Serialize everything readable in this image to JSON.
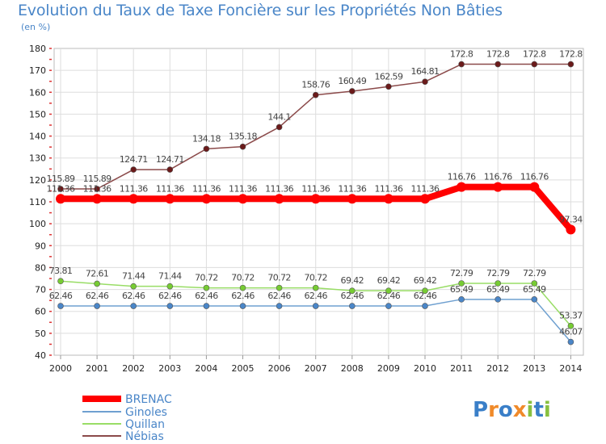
{
  "chart_data": {
    "type": "line",
    "title": "Evolution du Taux de Taxe Foncière sur les Propriétés Non Bâties",
    "ylabel": "(en %)",
    "xlabel": "",
    "ylim": [
      40,
      180
    ],
    "yticks": [
      40,
      50,
      60,
      70,
      80,
      90,
      100,
      110,
      120,
      130,
      140,
      150,
      160,
      170,
      180
    ],
    "categories": [
      "2000",
      "2001",
      "2002",
      "2003",
      "2004",
      "2005",
      "2006",
      "2007",
      "2008",
      "2009",
      "2010",
      "2011",
      "2012",
      "2013",
      "2014"
    ],
    "series": [
      {
        "name": "BRENAC",
        "color": "#ff0000",
        "marker": "#ff0000",
        "values": [
          111.36,
          111.36,
          111.36,
          111.36,
          111.36,
          111.36,
          111.36,
          111.36,
          111.36,
          111.36,
          111.36,
          116.76,
          116.76,
          116.76,
          97.34
        ],
        "labels": [
          "111.36",
          "111.36",
          "111.36",
          "111.36",
          "111.36",
          "111.36",
          "111.36",
          "111.36",
          "111.36",
          "111.36",
          "111.36",
          "116.76",
          "116.76",
          "116.76",
          "97.34"
        ]
      },
      {
        "name": "Ginoles",
        "color": "#6fa0d0",
        "marker": "#4a86c8",
        "values": [
          62.46,
          62.46,
          62.46,
          62.46,
          62.46,
          62.46,
          62.46,
          62.46,
          62.46,
          62.46,
          62.46,
          65.49,
          65.49,
          65.49,
          46.07
        ],
        "labels": [
          "62.46",
          "62.46",
          "62.46",
          "62.46",
          "62.46",
          "62.46",
          "62.46",
          "62.46",
          "62.46",
          "62.46",
          "62.46",
          "65.49",
          "65.49",
          "65.49",
          "46.07"
        ]
      },
      {
        "name": "Quillan",
        "color": "#99dd66",
        "marker": "#77cc33",
        "values": [
          73.81,
          72.61,
          71.44,
          71.44,
          70.72,
          70.72,
          70.72,
          70.72,
          69.42,
          69.42,
          69.42,
          72.79,
          72.79,
          72.79,
          53.37
        ],
        "labels": [
          "73.81",
          "72.61",
          "71.44",
          "71.44",
          "70.72",
          "70.72",
          "70.72",
          "70.72",
          "69.42",
          "69.42",
          "69.42",
          "72.79",
          "72.79",
          "72.79",
          "53.37"
        ]
      },
      {
        "name": "Nébias",
        "color": "#8b4a4a",
        "marker": "#6b1a1a",
        "values": [
          115.89,
          115.89,
          124.71,
          124.71,
          134.18,
          135.18,
          144.1,
          158.76,
          160.49,
          162.59,
          164.81,
          172.8,
          172.8,
          172.8,
          172.8
        ],
        "labels": [
          "115.89",
          "115.89",
          "124.71",
          "124.71",
          "134.18",
          "135.18",
          "144.1",
          "158.76",
          "160.49",
          "162.59",
          "164.81",
          "172.8",
          "172.8",
          "172.8",
          "172.8"
        ]
      }
    ],
    "legend_position": "bottom-left"
  },
  "logo": {
    "letters": [
      "P",
      "r",
      "o",
      "x",
      "i",
      "t",
      "i"
    ],
    "colors": [
      "#3a7fc8",
      "#f08a2a",
      "#3a7fc8",
      "#f08a2a",
      "#88c040",
      "#3a7fc8",
      "#88c040"
    ]
  }
}
